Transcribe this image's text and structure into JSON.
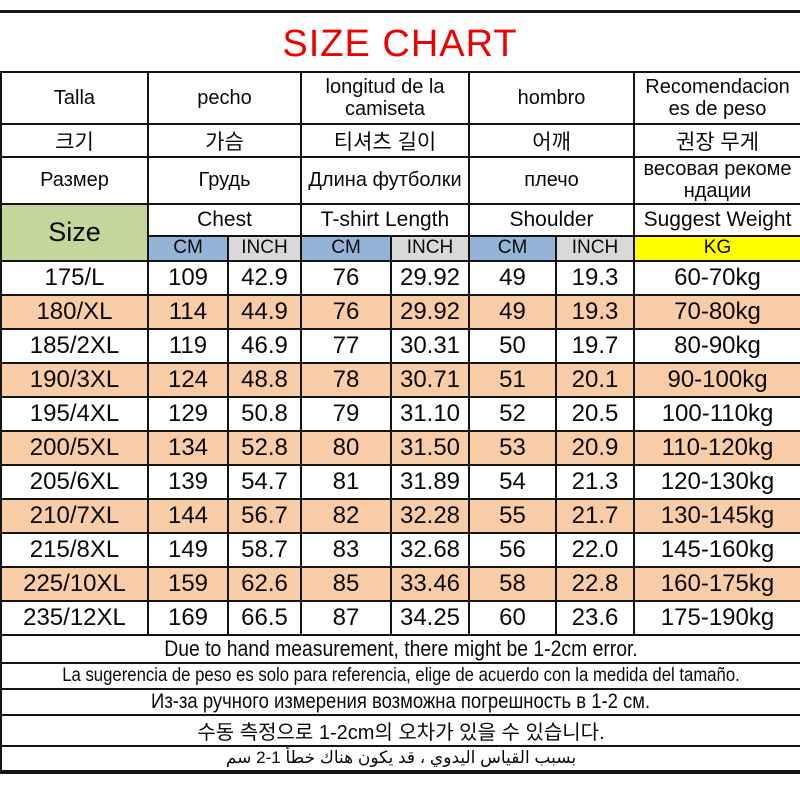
{
  "title": "SIZE CHART",
  "colors": {
    "title_red": "#ee0000",
    "size_green": "#c3d69b",
    "cm_blue": "#95b3d7",
    "inch_gray": "#d9d9d9",
    "kg_yellow": "#ffff00",
    "row_peach": "#f8cca6"
  },
  "header": {
    "es": {
      "size": "Talla",
      "chest": "pecho",
      "length": "longitud de la\ncamiseta",
      "shoulder": "hombro",
      "weight": "Recomendacion\nes de peso"
    },
    "ko": {
      "size": "크기",
      "chest": "가슴",
      "length": "티셔츠 길이",
      "shoulder": "어깨",
      "weight": "권장 무게"
    },
    "ru": {
      "size": "Размер",
      "chest": "Грудь",
      "length": "Длина футболки",
      "shoulder": "плечо",
      "weight": "весовая рекоме\nндации"
    },
    "en": {
      "size": "Size",
      "chest": "Chest",
      "length": "T-shirt Length",
      "shoulder": "Shoulder",
      "weight": "Suggest Weight"
    },
    "units": {
      "chest_cm": "CM",
      "chest_inch": "INCH",
      "length_cm": "CM",
      "length_inch": "INCH",
      "shoulder_cm": "CM",
      "shoulder_inch": "INCH",
      "weight_kg": "KG"
    }
  },
  "rows": [
    {
      "shaded": false,
      "cells": [
        "175/L",
        "109",
        "42.9",
        "76",
        "29.92",
        "49",
        "19.3",
        "60-70kg"
      ]
    },
    {
      "shaded": true,
      "cells": [
        "180/XL",
        "114",
        "44.9",
        "76",
        "29.92",
        "49",
        "19.3",
        "70-80kg"
      ]
    },
    {
      "shaded": false,
      "cells": [
        "185/2XL",
        "119",
        "46.9",
        "77",
        "30.31",
        "50",
        "19.7",
        "80-90kg"
      ]
    },
    {
      "shaded": true,
      "cells": [
        "190/3XL",
        "124",
        "48.8",
        "78",
        "30.71",
        "51",
        "20.1",
        "90-100kg"
      ]
    },
    {
      "shaded": false,
      "cells": [
        "195/4XL",
        "129",
        "50.8",
        "79",
        "31.10",
        "52",
        "20.5",
        "100-110kg"
      ]
    },
    {
      "shaded": true,
      "cells": [
        "200/5XL",
        "134",
        "52.8",
        "80",
        "31.50",
        "53",
        "20.9",
        "110-120kg"
      ]
    },
    {
      "shaded": false,
      "cells": [
        "205/6XL",
        "139",
        "54.7",
        "81",
        "31.89",
        "54",
        "21.3",
        "120-130kg"
      ]
    },
    {
      "shaded": true,
      "cells": [
        "210/7XL",
        "144",
        "56.7",
        "82",
        "32.28",
        "55",
        "21.7",
        "130-145kg"
      ]
    },
    {
      "shaded": false,
      "cells": [
        "215/8XL",
        "149",
        "58.7",
        "83",
        "32.68",
        "56",
        "22.0",
        "145-160kg"
      ]
    },
    {
      "shaded": true,
      "cells": [
        "225/10XL",
        "159",
        "62.6",
        "85",
        "33.46",
        "58",
        "22.8",
        "160-175kg"
      ]
    },
    {
      "shaded": false,
      "cells": [
        "235/12XL",
        "169",
        "66.5",
        "87",
        "34.25",
        "60",
        "23.6",
        "175-190kg"
      ]
    }
  ],
  "notes": [
    {
      "lang": "en",
      "rtl": false,
      "text": "Due to hand measurement, there might be 1-2cm error."
    },
    {
      "lang": "es",
      "rtl": false,
      "text": "La sugerencia de peso es solo para referencia, elige de acuerdo con la medida del tamaño."
    },
    {
      "lang": "ru",
      "rtl": false,
      "text": "Из-за ручного измерения возможна погрешность в 1-2 см."
    },
    {
      "lang": "ko",
      "rtl": false,
      "text": "수동 측정으로 1-2cm의 오차가 있을 수 있습니다."
    },
    {
      "lang": "ar",
      "rtl": true,
      "text": "بسبب القياس اليدوي ، قد يكون هناك خطأ 1-2 سم"
    }
  ]
}
